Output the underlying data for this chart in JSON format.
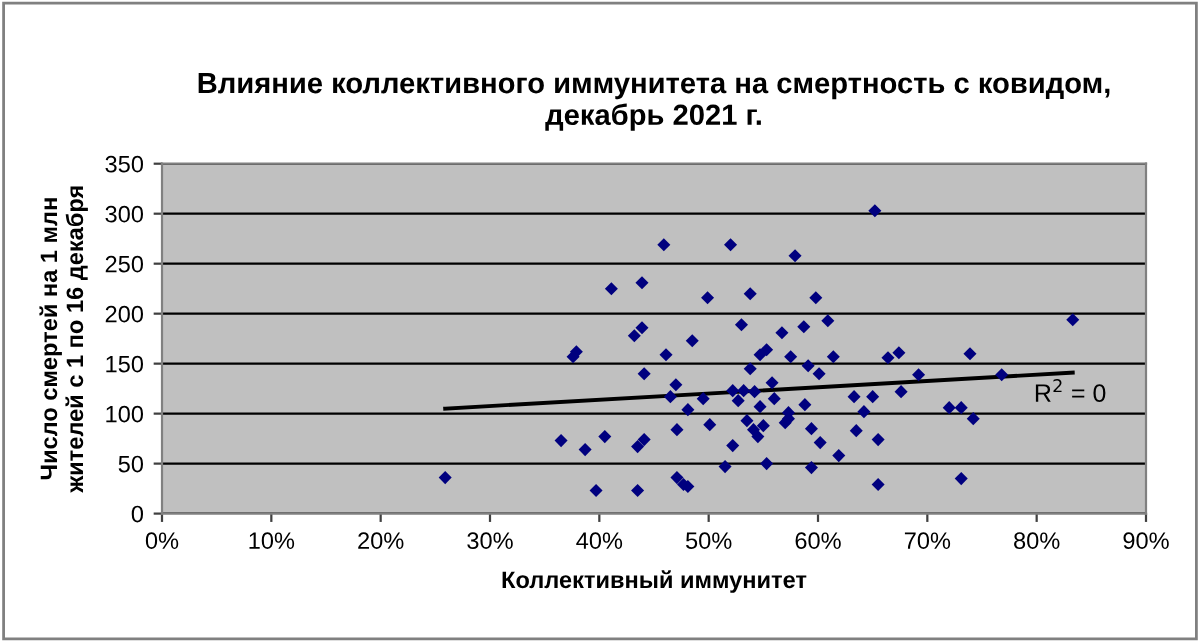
{
  "chart_data": {
    "type": "scatter",
    "title": "Влияние коллективного иммунитета на смертность с ковидом,\nдекабрь 2021 г.",
    "xlabel": "Коллективный иммунитет",
    "ylabel": "Число смертей на 1 млн\nжителей с 1 по 16 декабря",
    "xlim": [
      0,
      90
    ],
    "ylim": [
      0,
      350
    ],
    "xticks": [
      {
        "value": 0,
        "label": "0%"
      },
      {
        "value": 10,
        "label": "10%"
      },
      {
        "value": 20,
        "label": "20%"
      },
      {
        "value": 30,
        "label": "30%"
      },
      {
        "value": 40,
        "label": "40%"
      },
      {
        "value": 50,
        "label": "50%"
      },
      {
        "value": 60,
        "label": "60%"
      },
      {
        "value": 70,
        "label": "70%"
      },
      {
        "value": 80,
        "label": "80%"
      },
      {
        "value": 90,
        "label": "90%"
      }
    ],
    "yticks": [
      0,
      50,
      100,
      150,
      200,
      250,
      300,
      350
    ],
    "grid": "y",
    "legend": false,
    "series": [
      {
        "marker": "diamond",
        "color": "#00007f",
        "x": [
          37.6,
          37.9,
          36.5,
          25.9,
          45.9,
          52.0,
          57.9,
          41.1,
          43.9,
          49.9,
          53.8,
          59.8,
          60.9,
          53.0,
          43.2,
          43.9,
          48.5,
          56.7,
          58.7,
          46.1,
          54.7,
          55.3,
          57.5,
          61.4,
          44.1,
          53.8,
          59.1,
          60.1,
          47.0,
          46.5,
          55.8,
          52.2,
          53.2,
          54.2,
          49.5,
          52.7,
          56.0,
          48.1,
          54.7,
          58.8,
          57.3,
          63.3,
          38.7,
          40.5,
          43.5,
          44.1,
          47.1,
          50.1,
          53.5,
          54.1,
          54.5,
          55.0,
          57.0,
          57.3,
          52.2,
          59.4,
          60.2,
          61.9,
          63.5,
          51.5,
          55.3,
          59.4,
          39.7,
          43.5,
          47.1,
          47.7,
          48.1,
          65.2,
          83.3,
          66.4,
          67.4,
          73.9,
          69.2,
          76.8,
          67.6,
          65.0,
          64.2,
          72.0,
          73.1,
          74.2,
          65.5,
          65.5,
          73.1
        ],
        "values": [
          157,
          162,
          73,
          36,
          269,
          269,
          258,
          225,
          231,
          216,
          220,
          216,
          193,
          189,
          178,
          186,
          173,
          181,
          187,
          159,
          159,
          164,
          157,
          157,
          140,
          145,
          148,
          140,
          129,
          117,
          131,
          123,
          123,
          122,
          115,
          113,
          115,
          104,
          107,
          109,
          101,
          117,
          64,
          77,
          67,
          74,
          84,
          89,
          93,
          84,
          77,
          88,
          91,
          95,
          68,
          85,
          71,
          58,
          83,
          47,
          50,
          46,
          23,
          23,
          36,
          29,
          27,
          303,
          194,
          156,
          161,
          160,
          139,
          139,
          122,
          117,
          102,
          106,
          106,
          95,
          74,
          29,
          35
        ]
      },
      {
        "type": "line",
        "color": "#000000",
        "line_style": "solid",
        "marker": "none",
        "x": [
          25.9,
          83.3
        ],
        "values": [
          105,
          141
        ]
      }
    ],
    "annotations": [
      {
        "text": "R$^{2}$ = 0",
        "x": 83.3,
        "y": 141
      }
    ]
  }
}
